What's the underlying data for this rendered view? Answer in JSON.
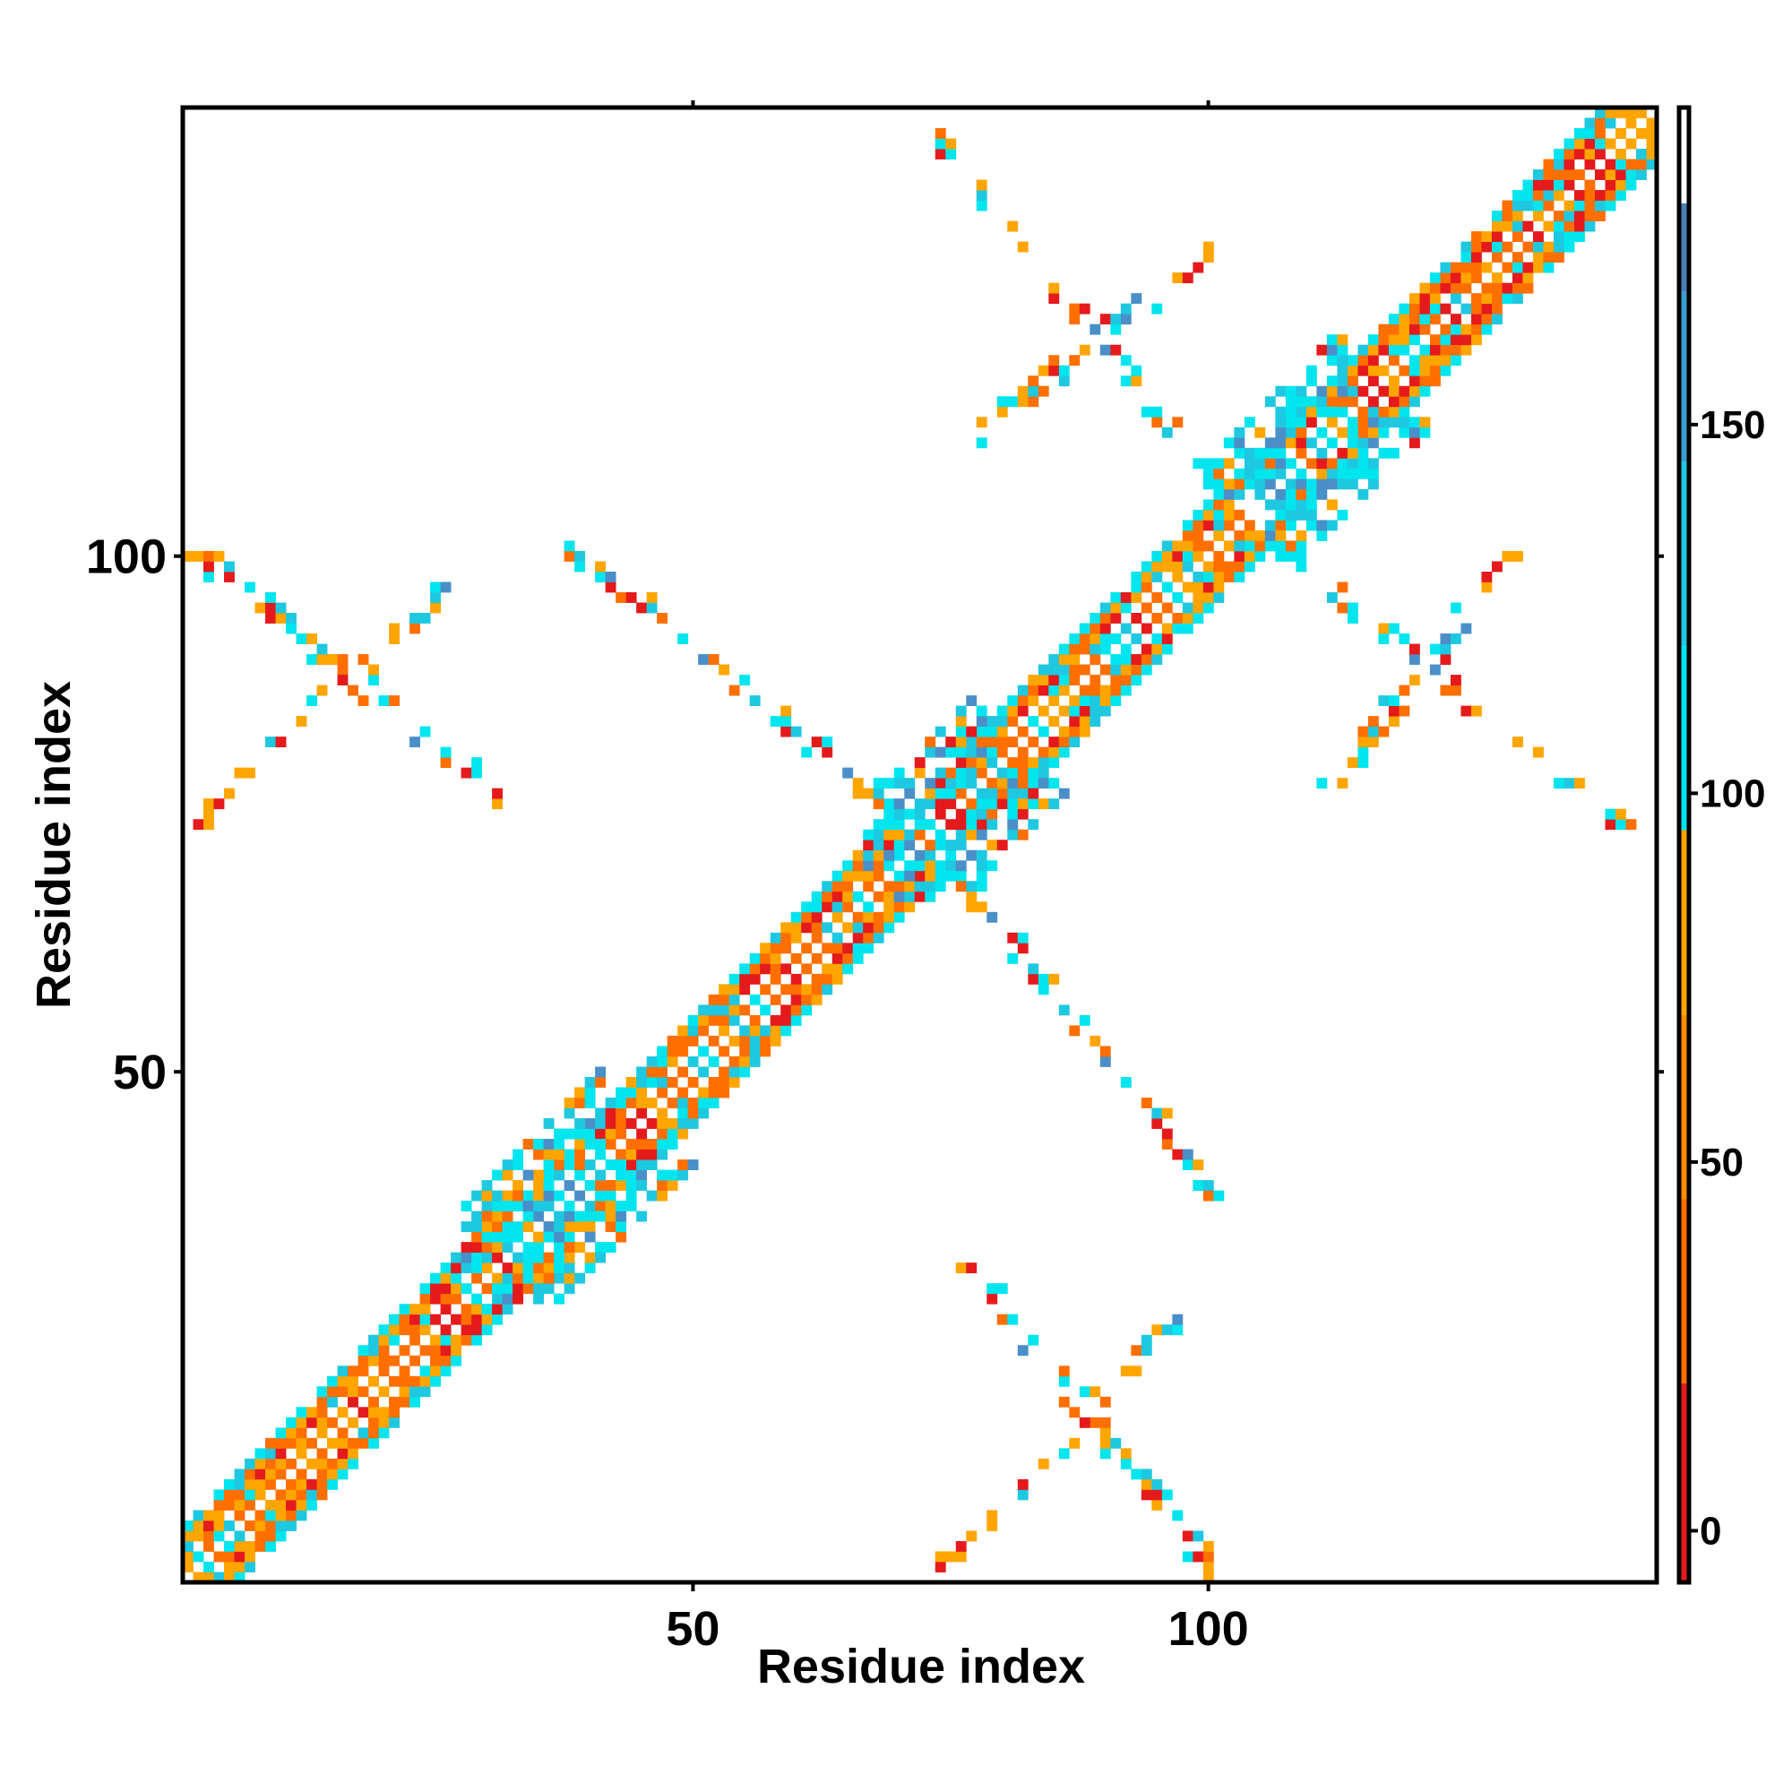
{
  "chart_data": {
    "type": "heatmap",
    "title": "",
    "xlabel": "Residue index",
    "ylabel": "Residue index",
    "xlim": [
      1,
      143
    ],
    "ylim": [
      1,
      143
    ],
    "x_ticks": [
      50,
      100
    ],
    "y_ticks": [
      50,
      100
    ],
    "grid": false,
    "legend": "right colorbar",
    "colorbar": {
      "ticks": [
        0,
        50,
        100,
        150
      ],
      "range": [
        -7,
        193
      ],
      "bands": [
        {
          "from": -7,
          "to": 20,
          "color": "#e41a1c"
        },
        {
          "from": 20,
          "to": 45,
          "color": "#ff6f00"
        },
        {
          "from": 45,
          "to": 70,
          "color": "#ff8c00"
        },
        {
          "from": 70,
          "to": 95,
          "color": "#ffa500"
        },
        {
          "from": 95,
          "to": 120,
          "color": "#00e5ee"
        },
        {
          "from": 120,
          "to": 145,
          "color": "#1ec8e0"
        },
        {
          "from": 145,
          "to": 168,
          "color": "#3a9fd0"
        },
        {
          "from": 168,
          "to": 180,
          "color": "#4a7fb8"
        },
        {
          "from": 180,
          "to": 193,
          "color": "#ffffff"
        }
      ]
    },
    "palette": [
      "#e41a1c",
      "#ff6f00",
      "#ffa500",
      "#00e5ee",
      "#1ec8e0",
      "#4a8fc8"
    ],
    "helices": [
      [
        1,
        31
      ],
      [
        38,
        70
      ],
      [
        75,
        103
      ],
      [
        108,
        143
      ]
    ],
    "sheets": [
      [
        31,
        38
      ],
      [
        70,
        75
      ],
      [
        103,
        110
      ]
    ],
    "contact_bands": [
      {
        "a": [
          1,
          31
        ],
        "b": [
          77,
          101
        ],
        "kind": "anti"
      },
      {
        "a": [
          38,
          70
        ],
        "b": [
          75,
          101
        ],
        "kind": "anti"
      },
      {
        "a": [
          2,
          27
        ],
        "b": [
          74,
          98
        ],
        "kind": "parallel"
      },
      {
        "a": [
          27,
          48
        ],
        "b": [
          32,
          52
        ],
        "kind": "parallel"
      },
      {
        "a": [
          75,
          101
        ],
        "b": [
          110,
          130
        ],
        "kind": "parallel"
      },
      {
        "a": [
          74,
          100
        ],
        "b": [
          108,
          140
        ],
        "kind": "anti"
      }
    ]
  }
}
